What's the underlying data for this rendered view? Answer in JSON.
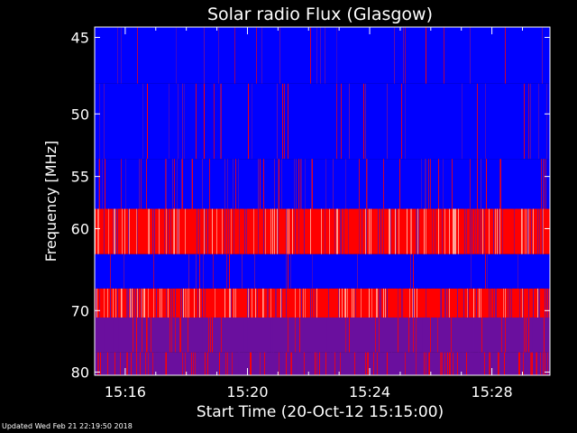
{
  "chart_data": {
    "type": "heatmap",
    "title": "Solar radio Flux (Glasgow)",
    "xlabel": "Start Time (20-Oct-12 15:15:00)",
    "ylabel": "Frequency [MHz]",
    "x_ticks": [
      "15:16",
      "15:20",
      "15:24",
      "15:28"
    ],
    "x_tick_minutes": [
      16,
      20,
      24,
      28
    ],
    "xlim_minutes": [
      15.0,
      29.9
    ],
    "y_ticks": [
      45,
      50,
      55,
      60,
      70,
      80
    ],
    "ylim": [
      80,
      45
    ],
    "y_scale": "reciprocal",
    "colors": {
      "low": "#0000ff",
      "mid": "#6a0f9e",
      "high": "#ff0000",
      "peak": "#ffb0a0",
      "background": "#000000",
      "axis": "#ffffff"
    },
    "bands": [
      {
        "f_min": 44.4,
        "f_max": 47.9,
        "level": "low",
        "burst_rate": 0.04
      },
      {
        "f_min": 47.9,
        "f_max": 53.5,
        "level": "low",
        "burst_rate": 0.08
      },
      {
        "f_min": 53.5,
        "f_max": 58.0,
        "level": "low",
        "burst_rate": 0.12
      },
      {
        "f_min": 58.0,
        "f_max": 62.8,
        "level": "high",
        "burst_rate": 0.45
      },
      {
        "f_min": 62.8,
        "f_max": 67.0,
        "level": "low",
        "burst_rate": 0.05
      },
      {
        "f_min": 67.0,
        "f_max": 71.0,
        "level": "high",
        "burst_rate": 0.4
      },
      {
        "f_min": 71.0,
        "f_max": 76.5,
        "level": "mid",
        "burst_rate": 0.15
      },
      {
        "f_min": 76.5,
        "f_max": 80.6,
        "level": "mid",
        "burst_rate": 0.3
      }
    ]
  },
  "footer": {
    "text": "Updated Wed Feb 21 22:19:50 2018"
  }
}
